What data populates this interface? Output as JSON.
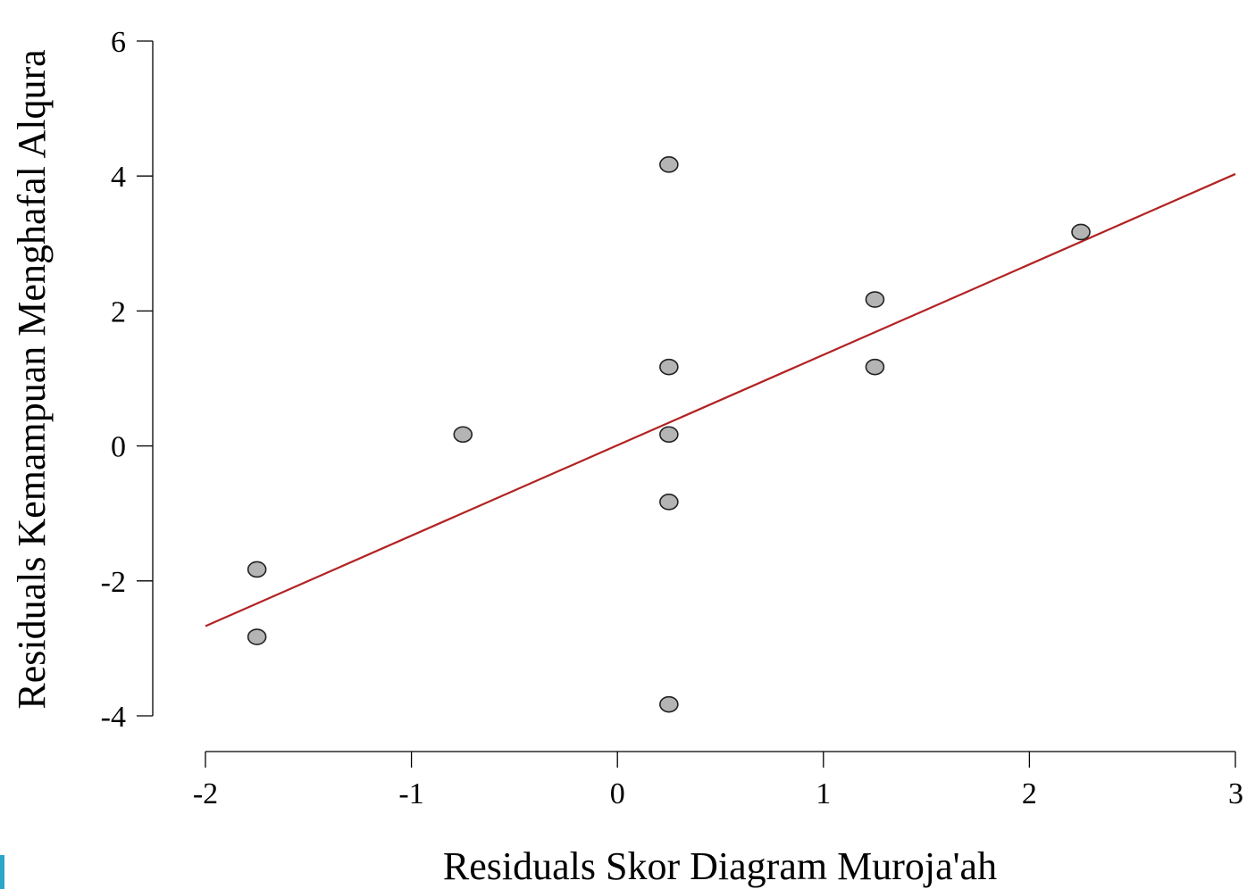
{
  "chart_data": {
    "type": "scatter",
    "title": "",
    "xlabel": "Residuals Skor Diagram Muroja'ah",
    "ylabel": "Residuals Kemampuan Menghafal Alqura",
    "xlim": [
      -2,
      3
    ],
    "ylim": [
      -4,
      6
    ],
    "x_ticks": [
      "-2",
      "-1",
      "0",
      "1",
      "2",
      "3"
    ],
    "y_ticks": [
      "-4",
      "-2",
      "0",
      "2",
      "4",
      "6"
    ],
    "grid": false,
    "legend": "none",
    "point_color": "#b4b4b4",
    "point_edge_color": "#222222",
    "points": [
      {
        "x": -1.75,
        "y": -1.83
      },
      {
        "x": -1.75,
        "y": -2.83
      },
      {
        "x": -0.75,
        "y": 0.17
      },
      {
        "x": 0.25,
        "y": 4.17
      },
      {
        "x": 0.25,
        "y": 1.17
      },
      {
        "x": 0.25,
        "y": 0.17
      },
      {
        "x": 0.25,
        "y": -0.83
      },
      {
        "x": 0.25,
        "y": -3.83
      },
      {
        "x": 1.25,
        "y": 2.17
      },
      {
        "x": 1.25,
        "y": 1.17
      },
      {
        "x": 2.25,
        "y": 3.17
      }
    ],
    "regression_line": {
      "color": "#b22222",
      "x": [
        -2,
        3
      ],
      "y": [
        -2.67,
        4.03
      ]
    }
  }
}
